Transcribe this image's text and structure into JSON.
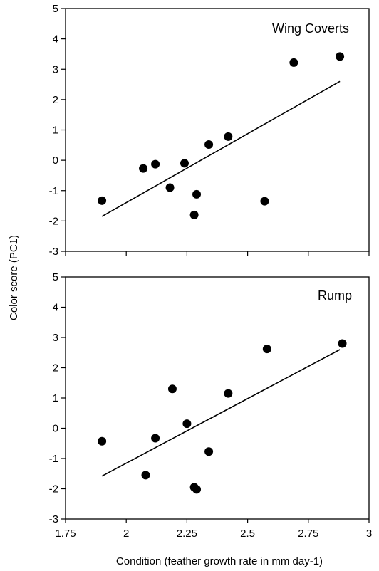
{
  "chart_data": [
    {
      "type": "scatter",
      "panel_label": "Wing Coverts",
      "ylabel": "Color score (PC1)",
      "xlabel": "Condition (feather growth rate in mm day-1)",
      "xlim": [
        1.75,
        3
      ],
      "ylim": [
        -3,
        5
      ],
      "x_ticks": [
        "1.75",
        "2",
        "2.25",
        "2.5",
        "2.75",
        "3"
      ],
      "y_ticks": [
        "-3",
        "-2",
        "-1",
        "0",
        "1",
        "2",
        "3",
        "4",
        "5"
      ],
      "points": [
        {
          "x": 1.9,
          "y": -1.33
        },
        {
          "x": 2.07,
          "y": -0.27
        },
        {
          "x": 2.12,
          "y": -0.13
        },
        {
          "x": 2.18,
          "y": -0.9
        },
        {
          "x": 2.24,
          "y": -0.1
        },
        {
          "x": 2.28,
          "y": -1.8
        },
        {
          "x": 2.29,
          "y": -1.12
        },
        {
          "x": 2.34,
          "y": 0.52
        },
        {
          "x": 2.42,
          "y": 0.78
        },
        {
          "x": 2.57,
          "y": -1.35
        },
        {
          "x": 2.69,
          "y": 3.22
        },
        {
          "x": 2.88,
          "y": 3.42
        }
      ],
      "fit_line": {
        "x": [
          1.9,
          2.88
        ],
        "y": [
          -1.85,
          2.6
        ]
      }
    },
    {
      "type": "scatter",
      "panel_label": "Rump",
      "ylabel": "Color score (PC1)",
      "xlabel": "Condition (feather growth rate in mm day-1)",
      "xlim": [
        1.75,
        3
      ],
      "ylim": [
        -3,
        5
      ],
      "x_ticks": [
        "1.75",
        "2",
        "2.25",
        "2.5",
        "2.75",
        "3"
      ],
      "y_ticks": [
        "-3",
        "-2",
        "-1",
        "0",
        "1",
        "2",
        "3",
        "4",
        "5"
      ],
      "points": [
        {
          "x": 1.9,
          "y": -0.43
        },
        {
          "x": 2.08,
          "y": -1.55
        },
        {
          "x": 2.12,
          "y": -0.33
        },
        {
          "x": 2.19,
          "y": 1.3
        },
        {
          "x": 2.25,
          "y": 0.15
        },
        {
          "x": 2.28,
          "y": -1.95
        },
        {
          "x": 2.29,
          "y": -2.02
        },
        {
          "x": 2.34,
          "y": -0.77
        },
        {
          "x": 2.42,
          "y": 1.15
        },
        {
          "x": 2.58,
          "y": 2.62
        },
        {
          "x": 2.89,
          "y": 2.8
        }
      ],
      "fit_line": {
        "x": [
          1.9,
          2.88
        ],
        "y": [
          -1.58,
          2.6
        ]
      }
    }
  ],
  "labels": {
    "ylabel": "Color score (PC1)",
    "xlabel": "Condition (feather growth rate in mm day-1)"
  }
}
